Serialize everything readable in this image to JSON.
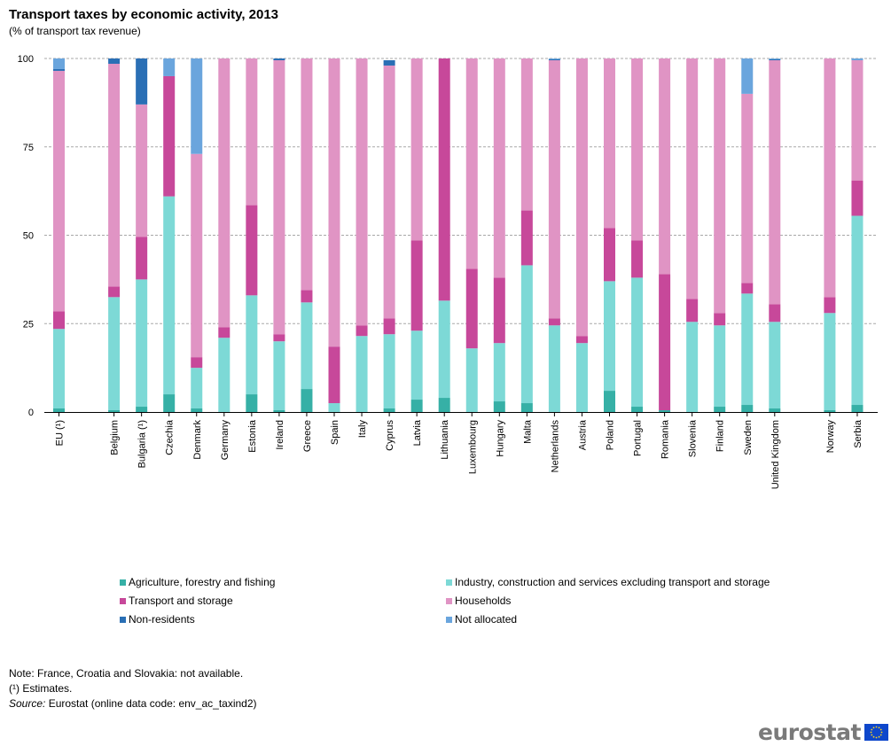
{
  "chart_data": {
    "type": "bar",
    "stacked": true,
    "title": "Transport taxes by economic activity, 2013",
    "subtitle": "(% of transport tax revenue)",
    "ylim": [
      0,
      100
    ],
    "yticks": [
      "0",
      "25",
      "50",
      "75",
      "100"
    ],
    "grid": true,
    "legend_position": "bottom",
    "categories": [
      "EU (¹)",
      "Belgium",
      "Bulgaria (¹)",
      "Czechia",
      "Denmark",
      "Germany",
      "Estonia",
      "Ireland",
      "Greece",
      "Spain",
      "Italy",
      "Cyprus",
      "Latvia",
      "Lithuania",
      "Luxembourg",
      "Hungary",
      "Malta",
      "Netherlands",
      "Austria",
      "Poland",
      "Portugal",
      "Romania",
      "Slovenia",
      "Finland",
      "Sweden",
      "United Kingdom",
      "Norway",
      "Serbia"
    ],
    "groups": [
      1,
      2,
      2,
      2,
      2,
      2,
      2,
      2,
      2,
      2,
      2,
      2,
      2,
      2,
      2,
      2,
      2,
      2,
      2,
      2,
      2,
      2,
      2,
      2,
      2,
      2,
      3,
      3
    ],
    "series": [
      {
        "name": "Agriculture, forestry and fishing",
        "color": "#36b0a6",
        "values": [
          1,
          0.5,
          1.5,
          5,
          1,
          0,
          5,
          0.5,
          6.5,
          0,
          0,
          1,
          3.5,
          4,
          0,
          3,
          2.5,
          0,
          0,
          6,
          1.5,
          0.5,
          0,
          1.5,
          2,
          1,
          0.5,
          2
        ]
      },
      {
        "name": "Industry, construction and services excluding transport and storage",
        "color": "#7dd9d6",
        "values": [
          22.5,
          32,
          36,
          56,
          11.5,
          21,
          28,
          19.5,
          24.5,
          2.5,
          21.5,
          21,
          19.5,
          27.5,
          18,
          16.5,
          39,
          24.5,
          19.5,
          31,
          36.5,
          0,
          25.5,
          23,
          31.5,
          24.5,
          27.5,
          53.5
        ]
      },
      {
        "name": "Transport and storage",
        "color": "#c7489a",
        "values": [
          5,
          3,
          12,
          34,
          3,
          3,
          25.5,
          2,
          3.5,
          16,
          3,
          4.5,
          25.5,
          68.5,
          22.5,
          18.5,
          15.5,
          2,
          2,
          15,
          10.5,
          38.5,
          6.5,
          3.5,
          3,
          5,
          4.5,
          10
        ]
      },
      {
        "name": "Households",
        "color": "#e094c4",
        "values": [
          68,
          63,
          37.5,
          0,
          57.5,
          76,
          41.5,
          77.5,
          65.5,
          81.5,
          75.5,
          71.5,
          51.5,
          0,
          59.5,
          62,
          43,
          73,
          78.5,
          48,
          51.5,
          61,
          68,
          72,
          53.5,
          69,
          67.5,
          34
        ]
      },
      {
        "name": "Non-residents",
        "color": "#2a6fb5",
        "values": [
          0.5,
          1.5,
          13,
          0,
          0,
          0,
          0,
          0.5,
          0,
          0,
          0,
          1.5,
          0,
          0,
          0,
          0,
          0,
          0.3,
          0,
          0,
          0,
          0,
          0,
          0,
          0,
          0.3,
          0,
          0
        ]
      },
      {
        "name": "Not allocated",
        "color": "#6aa5dd",
        "values": [
          3,
          0,
          0,
          5,
          27,
          0,
          0,
          0,
          0,
          0,
          0,
          0,
          0,
          0,
          0,
          0,
          0,
          0.2,
          0,
          0,
          0,
          0,
          0,
          0,
          10,
          0.2,
          0,
          0.5
        ]
      }
    ]
  },
  "notes": {
    "line1": "Note: France, Croatia and Slovakia: not available.",
    "line2": "(¹) Estimates.",
    "source_label": "Source:",
    "source_text": " Eurostat (online data code: env_ac_taxind2)"
  },
  "logo": {
    "text": "eurostat"
  }
}
